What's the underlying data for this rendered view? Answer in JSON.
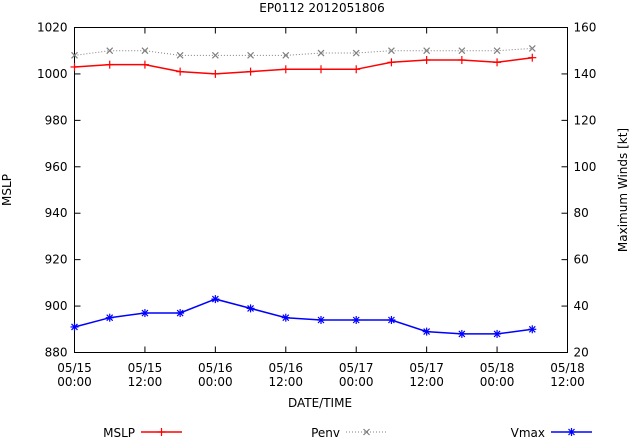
{
  "chart_data": {
    "type": "line",
    "title": "EP0112 2012051806",
    "xlabel": "DATE/TIME",
    "ylabel": "MSLP",
    "y2label": "Maximum Winds [kt]",
    "xlim": [
      "05/15 00:00",
      "05/18 12:00"
    ],
    "ylim": [
      880,
      1020
    ],
    "y2lim": [
      20,
      160
    ],
    "x_ticks": [
      {
        "date": "05/15",
        "time": "00:00"
      },
      {
        "date": "05/15",
        "time": "12:00"
      },
      {
        "date": "05/16",
        "time": "00:00"
      },
      {
        "date": "05/16",
        "time": "12:00"
      },
      {
        "date": "05/17",
        "time": "00:00"
      },
      {
        "date": "05/17",
        "time": "12:00"
      },
      {
        "date": "05/18",
        "time": "00:00"
      },
      {
        "date": "05/18",
        "time": "12:00"
      }
    ],
    "y_ticks": [
      880,
      900,
      920,
      940,
      960,
      980,
      1000,
      1020
    ],
    "y2_ticks": [
      20,
      40,
      60,
      80,
      100,
      120,
      140,
      160
    ],
    "x": [
      "05/15 00:00",
      "05/15 06:00",
      "05/15 12:00",
      "05/15 18:00",
      "05/16 00:00",
      "05/16 06:00",
      "05/16 12:00",
      "05/16 18:00",
      "05/17 00:00",
      "05/17 06:00",
      "05/17 12:00",
      "05/17 18:00",
      "05/18 00:00",
      "05/18 06:00"
    ],
    "series": [
      {
        "name": "MSLP",
        "axis": "left",
        "color": "#ff0000",
        "marker": "plus",
        "dash": "solid",
        "values": [
          1003,
          1004,
          1004,
          1001,
          1000,
          1001,
          1002,
          1002,
          1002,
          1005,
          1006,
          1006,
          1005,
          1007
        ]
      },
      {
        "name": "Penv",
        "axis": "left",
        "color": "#808080",
        "marker": "cross",
        "dash": "dotted",
        "values": [
          1008,
          1010,
          1010,
          1008,
          1008,
          1008,
          1008,
          1009,
          1009,
          1010,
          1010,
          1010,
          1010,
          1011
        ]
      },
      {
        "name": "Vmax",
        "axis": "right",
        "color": "#0000ff",
        "marker": "star",
        "dash": "solid",
        "values": [
          31,
          35,
          37,
          37,
          43,
          39,
          35,
          34,
          34,
          34,
          29,
          28,
          28,
          30
        ]
      }
    ],
    "legend_position": "bottom",
    "grid": false
  }
}
